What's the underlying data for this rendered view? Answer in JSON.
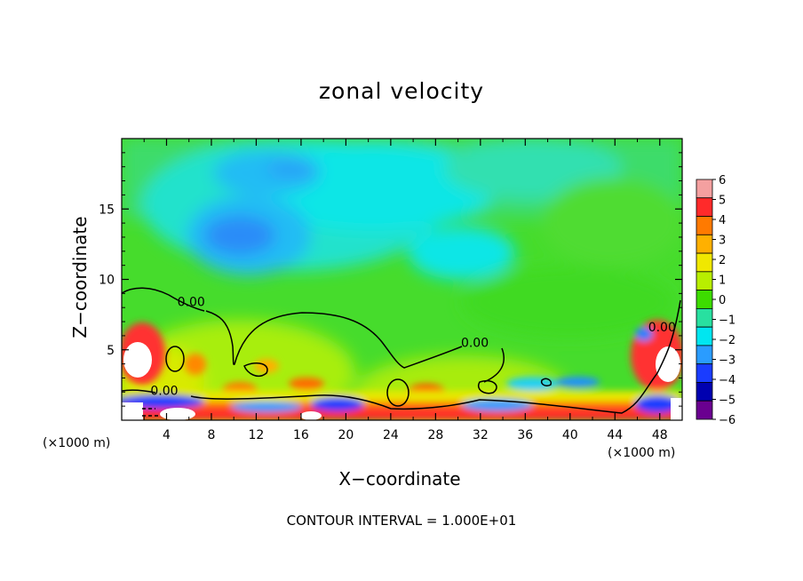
{
  "chart_data": {
    "type": "heatmap",
    "title": "zonal velocity",
    "xlabel": "X−coordinate",
    "ylabel": "Z−coordinate",
    "x_unit_left": "(×1000 m)",
    "x_unit_right": "(×1000 m)",
    "footer": "CONTOUR INTERVAL = 1.000E+01",
    "xlim": [
      0,
      50
    ],
    "ylim": [
      0,
      20
    ],
    "x_ticks": [
      "4",
      "8",
      "12",
      "16",
      "20",
      "24",
      "28",
      "32",
      "36",
      "40",
      "44",
      "48"
    ],
    "x_tick_values": [
      4,
      8,
      12,
      16,
      20,
      24,
      28,
      32,
      36,
      40,
      44,
      48
    ],
    "y_ticks": [
      "5",
      "10",
      "15"
    ],
    "y_tick_values": [
      5,
      10,
      15
    ],
    "colorbar": {
      "labels": [
        "6",
        "5",
        "4",
        "3",
        "2",
        "1",
        "0",
        "−1",
        "−2",
        "−3",
        "−4",
        "−5",
        "−6"
      ],
      "colors": [
        "#f4a0a0",
        "#ff2a2a",
        "#ff7a00",
        "#ffb000",
        "#f0e800",
        "#b8ee00",
        "#3ddc00",
        "#28e0a0",
        "#00e6f0",
        "#2a9cff",
        "#1a3cff",
        "#0000b0",
        "#6a0090"
      ]
    },
    "contour_labels": [
      {
        "text": "0.00",
        "x": 6.2,
        "y": 8.1
      },
      {
        "text": "0.00",
        "x": 31.5,
        "y": 5.2
      },
      {
        "text": "0.00",
        "x": 3.8,
        "y": 1.8
      },
      {
        "text": "0.00",
        "x": 48.2,
        "y": 6.3
      }
    ]
  }
}
